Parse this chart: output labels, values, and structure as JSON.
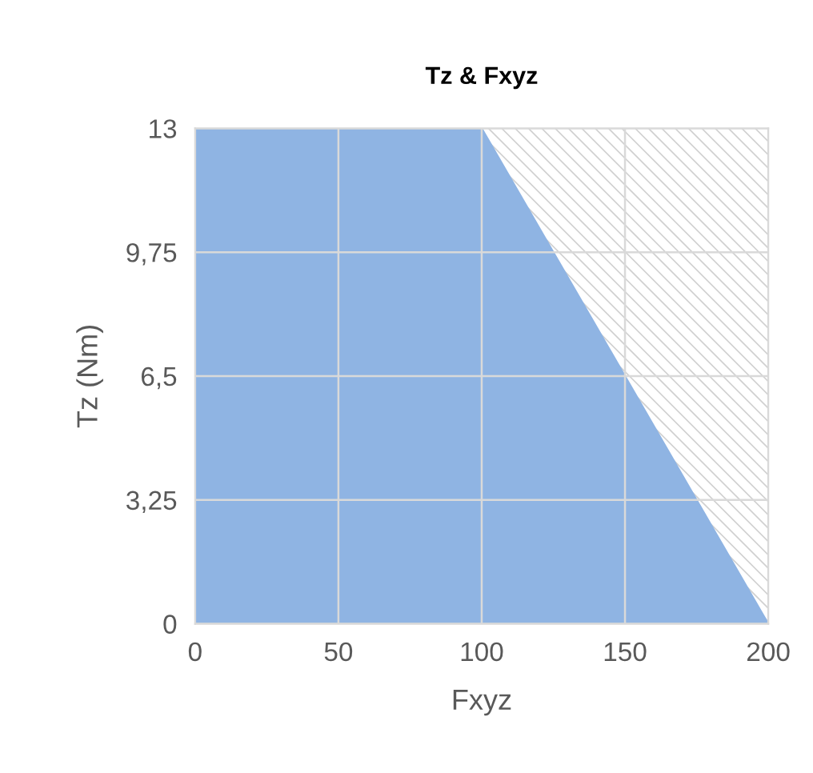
{
  "chart_data": {
    "type": "area",
    "title": "Tz & Fxyz",
    "xlabel": "Fxyz",
    "ylabel": "Tz (Nm)",
    "x": [
      0,
      100,
      200
    ],
    "series": [
      {
        "color": "#8fb4e3",
        "values": [
          13,
          13,
          0
        ]
      }
    ],
    "xlim": [
      0,
      200
    ],
    "xticks": [
      0,
      50,
      100,
      150,
      200
    ],
    "ylim": [
      0,
      13
    ],
    "yticks": [
      0,
      {
        "value": 3.25,
        "label": "3,25"
      },
      {
        "value": 6.5,
        "label": "6,5"
      },
      {
        "value": 9.75,
        "label": "9,75"
      },
      13
    ],
    "grid": true,
    "legend": false
  }
}
